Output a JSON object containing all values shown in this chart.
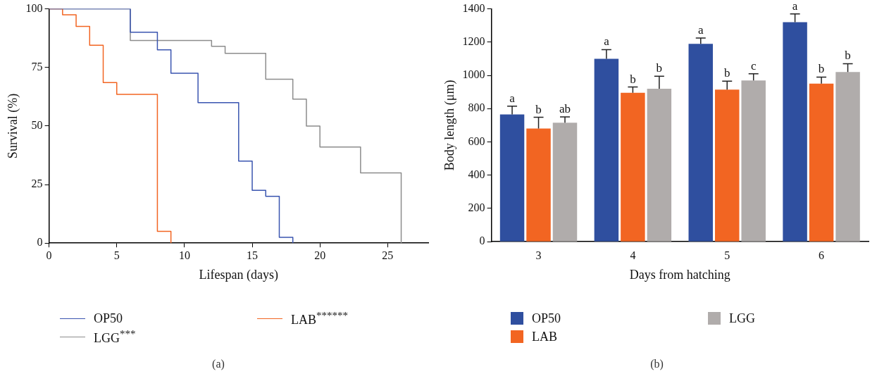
{
  "chart_data": [
    {
      "type": "step",
      "xlabel": "Lifespan (days)",
      "ylabel": "Survival (%)",
      "xlim": [
        0,
        28
      ],
      "xticks": [
        0,
        5,
        10,
        15,
        20,
        25
      ],
      "ylim": [
        0,
        100
      ],
      "yticks": [
        0,
        25,
        50,
        75,
        100
      ],
      "grid": false,
      "legend": "bottom",
      "annotations": [
        "(a)"
      ],
      "series": [
        {
          "name": "OP50",
          "color": "#3a55b0",
          "x": [
            0,
            6,
            8,
            9,
            11,
            14,
            15,
            16,
            17,
            18
          ],
          "values": [
            100,
            90,
            82.5,
            72.5,
            60,
            35,
            22.5,
            20,
            2.5,
            0
          ]
        },
        {
          "name": "LAB$^{******}$",
          "color": "#f26522",
          "x": [
            0,
            1,
            2,
            3,
            4,
            5,
            8,
            9
          ],
          "values": [
            100,
            97.5,
            92.5,
            84.5,
            68.5,
            63.5,
            5,
            0
          ]
        },
        {
          "name": "LGG$^{***}$",
          "color": "#8c8c8c",
          "x": [
            0,
            6,
            12,
            13,
            16,
            18,
            19,
            20,
            23,
            26
          ],
          "values": [
            100,
            86.5,
            84,
            81,
            70,
            61.5,
            50,
            41,
            30,
            0
          ]
        }
      ]
    },
    {
      "type": "bar",
      "xlabel": "Days from hatching",
      "ylabel": "Body length (μm)",
      "categories": [
        "3",
        "4",
        "5",
        "6"
      ],
      "ylim": [
        0,
        1400
      ],
      "yticks": [
        0,
        200,
        400,
        600,
        800,
        1000,
        1200,
        1400
      ],
      "grid": false,
      "legend": "bottom",
      "annotations": [
        "(b)"
      ],
      "series": [
        {
          "name": "OP50",
          "color": "#2f4f9f",
          "values": [
            765,
            1100,
            1190,
            1320
          ],
          "errors": [
            50,
            55,
            35,
            50
          ],
          "value_labels": [
            "a",
            "a",
            "a",
            "a"
          ]
        },
        {
          "name": "LAB",
          "color": "#f26522",
          "values": [
            680,
            895,
            915,
            950
          ],
          "errors": [
            68,
            35,
            50,
            40
          ],
          "value_labels": [
            "b",
            "b",
            "b",
            "b"
          ]
        },
        {
          "name": "LGG",
          "color": "#b0acab",
          "values": [
            715,
            920,
            970,
            1020
          ],
          "errors": [
            35,
            75,
            40,
            50
          ],
          "value_labels": [
            "ab",
            "b",
            "c",
            "b"
          ]
        }
      ]
    }
  ]
}
